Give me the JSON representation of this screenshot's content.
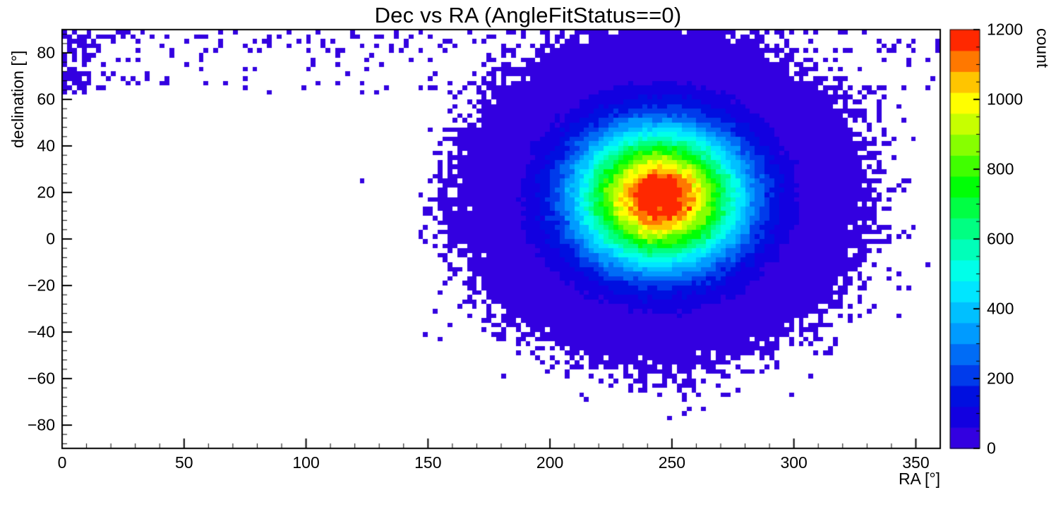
{
  "chart_data": {
    "type": "heatmap",
    "title": "Dec vs RA (AngleFitStatus==0)",
    "xlabel": "RA [°]",
    "ylabel": "declination [°]",
    "colorbar_label": "count",
    "xlim": [
      0,
      360
    ],
    "ylim": [
      -90,
      90
    ],
    "zlim": [
      0,
      1200
    ],
    "x_ticks": {
      "values": [
        0,
        50,
        100,
        150,
        200,
        250,
        300,
        350
      ],
      "labels": [
        "0",
        "50",
        "100",
        "150",
        "200",
        "250",
        "300",
        "350"
      ]
    },
    "y_ticks": {
      "values": [
        -80,
        -60,
        -40,
        -20,
        0,
        20,
        40,
        60,
        80
      ],
      "labels": [
        "−80",
        "−60",
        "−40",
        "−20",
        "0",
        "20",
        "40",
        "60",
        "80"
      ]
    },
    "z_ticks": {
      "values": [
        0,
        200,
        400,
        600,
        800,
        1000,
        1200
      ],
      "labels": [
        "0",
        "200",
        "400",
        "600",
        "800",
        "1000",
        "1200"
      ]
    },
    "x_minor_step": 10,
    "y_minor_step": 4,
    "z_minor_step": 50,
    "bins": {
      "nx": 180,
      "ny": 90,
      "bin_width_deg": 2,
      "bin_height_deg": 2
    },
    "grid": false,
    "palette": {
      "levels": 20,
      "hue_stops": [
        [
          0,
          258
        ],
        [
          0.13,
          235
        ],
        [
          0.25,
          208
        ],
        [
          0.38,
          185
        ],
        [
          0.5,
          158
        ],
        [
          0.63,
          120
        ],
        [
          0.75,
          80
        ],
        [
          0.88,
          45
        ],
        [
          1,
          0
        ]
      ]
    },
    "distribution": {
      "model": "gaussian2d_plus_polar_cap",
      "description": "Dense 2D-Gaussian blob of event counts peaking near RA 245, Dec 18 (max ~1200+), surrounded by Poisson speckle; sparse single-count bins across high declinations (Dec > ~62) at all RA, denser near RA 0",
      "center": {
        "ra": 245,
        "dec": 18
      },
      "sigma": {
        "ra": 23,
        "dec": 20
      },
      "peak_count": 1260,
      "polar_cap": {
        "dec_min": 62,
        "mean": 0.08,
        "left_edge_ra_max": 18,
        "left_edge_mean": 0.5,
        "high_dec_min": 80,
        "high_dec_extra": 0.1
      },
      "seed": 424242
    },
    "colors": {
      "background": "#ffffff",
      "axis": "#000000",
      "text": "#000000"
    }
  }
}
